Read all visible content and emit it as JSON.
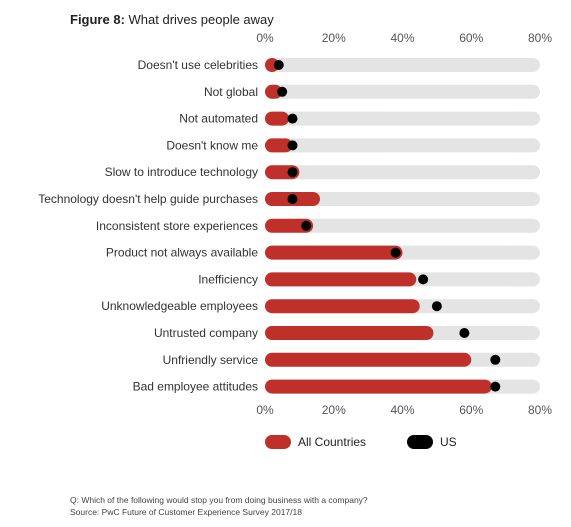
{
  "title": {
    "prefix": "Figure 8:",
    "text": "What drives people away"
  },
  "chart_data": {
    "type": "bar",
    "orientation": "horizontal",
    "categories": [
      "Doesn't use celebrities",
      "Not global",
      "Not automated",
      "Doesn't know me",
      "Slow to introduce technology",
      "Technology doesn't help guide purchases",
      "Inconsistent store experiences",
      "Product not always available",
      "Inefficiency",
      "Unknowledgeable employees",
      "Untrusted company",
      "Unfriendly service",
      "Bad employee attitudes"
    ],
    "series": [
      {
        "name": "All Countries",
        "values": [
          4,
          5,
          7,
          8,
          10,
          16,
          14,
          40,
          44,
          45,
          49,
          60,
          66
        ]
      },
      {
        "name": "US",
        "values": [
          4,
          5,
          8,
          8,
          8,
          8,
          12,
          38,
          46,
          50,
          58,
          67,
          67
        ]
      }
    ],
    "xlim": [
      0,
      80
    ],
    "x_ticks": [
      "0%",
      "20%",
      "40%",
      "60%",
      "80%"
    ],
    "colors": {
      "all_countries": "#c0302b",
      "us": "#000000",
      "track": "#e4e4e4"
    },
    "legend_position": "bottom",
    "grid": false
  },
  "footnote": {
    "question": "Q: Which of the following would stop you from doing business with a company?",
    "source": "Source: PwC Future of Customer Experience Survey 2017/18"
  }
}
